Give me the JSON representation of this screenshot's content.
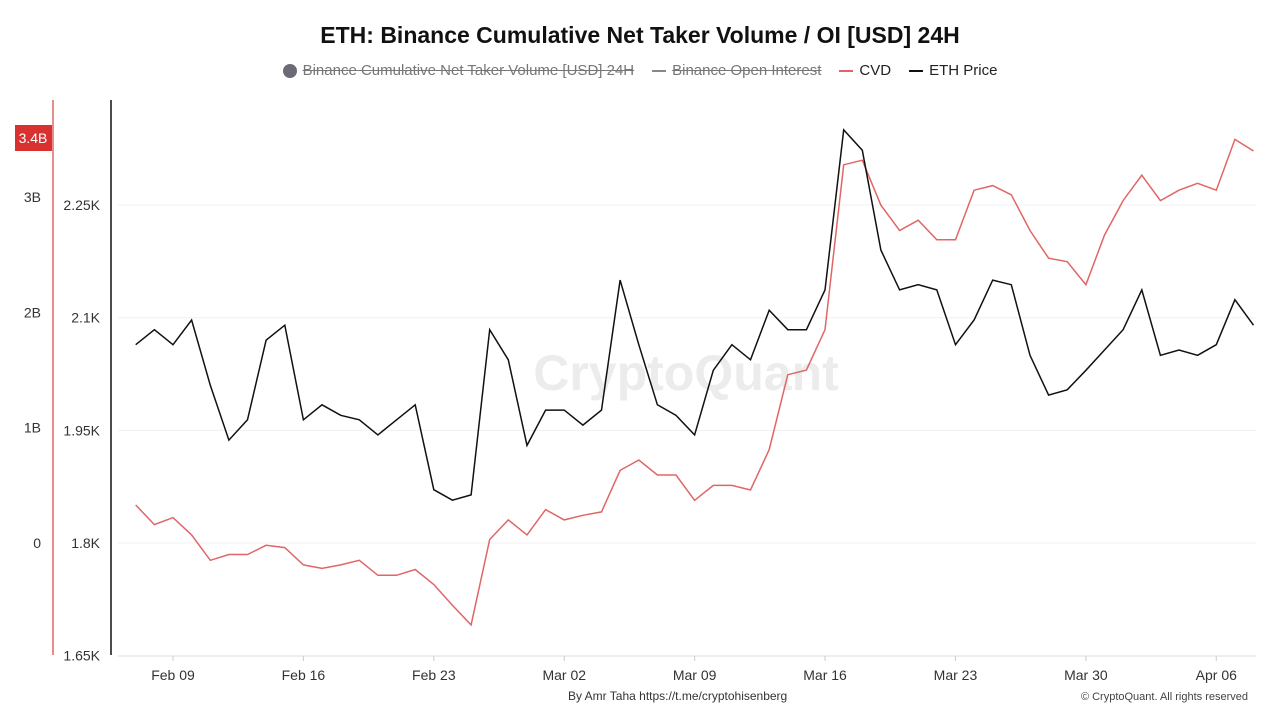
{
  "chart_data": {
    "type": "line",
    "title": "ETH: Binance Cumulative Net Taker Volume / OI [USD] 24H",
    "legend": [
      {
        "name": "Binance Cumulative Net Taker Volume [USD] 24H",
        "color": "#6b6b78",
        "hidden": true
      },
      {
        "name": "Binance Open Interest",
        "color": "#888888",
        "hidden": true
      },
      {
        "name": "CVD",
        "color": "#e06666",
        "hidden": false
      },
      {
        "name": "ETH Price",
        "color": "#111111",
        "hidden": false
      }
    ],
    "legend_position": "top",
    "x": [
      "2025-02-07",
      "2025-02-08",
      "2025-02-09",
      "2025-02-10",
      "2025-02-11",
      "2025-02-12",
      "2025-02-13",
      "2025-02-14",
      "2025-02-15",
      "2025-02-16",
      "2025-02-17",
      "2025-02-18",
      "2025-02-19",
      "2025-02-20",
      "2025-02-21",
      "2025-02-22",
      "2025-02-23",
      "2025-02-24",
      "2025-02-25",
      "2025-02-26",
      "2025-02-27",
      "2025-02-28",
      "2025-03-01",
      "2025-03-02",
      "2025-03-03",
      "2025-03-04",
      "2025-03-05",
      "2025-03-06",
      "2025-03-07",
      "2025-03-08",
      "2025-03-09",
      "2025-03-10",
      "2025-03-11",
      "2025-03-12",
      "2025-03-13",
      "2025-03-14",
      "2025-03-15",
      "2025-03-16",
      "2025-03-17",
      "2025-03-18",
      "2025-03-19",
      "2025-03-20",
      "2025-03-21",
      "2025-03-22",
      "2025-03-23",
      "2025-03-24",
      "2025-03-25",
      "2025-03-26",
      "2025-03-27",
      "2025-03-28",
      "2025-03-29",
      "2025-03-30",
      "2025-03-31",
      "2025-04-01",
      "2025-04-02",
      "2025-04-03",
      "2025-04-04",
      "2025-04-05",
      "2025-04-06",
      "2025-04-07",
      "2025-04-08"
    ],
    "series": [
      {
        "name": "CVD",
        "axis": "left",
        "unit": "USD billions",
        "color": "#e06666",
        "values": [
          0.33,
          0.16,
          0.22,
          0.07,
          -0.15,
          -0.1,
          -0.1,
          -0.02,
          -0.04,
          -0.19,
          -0.22,
          -0.19,
          -0.15,
          -0.28,
          -0.28,
          -0.23,
          -0.36,
          -0.54,
          -0.71,
          0.03,
          0.2,
          0.07,
          0.29,
          0.2,
          0.24,
          0.27,
          0.63,
          0.72,
          0.59,
          0.59,
          0.37,
          0.5,
          0.5,
          0.46,
          0.81,
          1.46,
          1.5,
          1.85,
          3.28,
          3.32,
          2.93,
          2.71,
          2.8,
          2.63,
          2.63,
          3.06,
          3.1,
          3.02,
          2.71,
          2.47,
          2.44,
          2.24,
          2.67,
          2.97,
          3.19,
          2.97,
          3.06,
          3.12,
          3.06,
          3.5,
          3.4
        ]
      },
      {
        "name": "ETH Price",
        "axis": "right",
        "unit": "USD",
        "color": "#111111",
        "values": [
          2064,
          2084,
          2064,
          2097,
          2010,
          1937,
          1964,
          2070,
          2090,
          1964,
          1984,
          1970,
          1964,
          1944,
          1964,
          1984,
          1871,
          1857,
          1864,
          2084,
          2044,
          1930,
          1977,
          1977,
          1957,
          1977,
          2150,
          2064,
          1984,
          1970,
          1944,
          2030,
          2064,
          2044,
          2110,
          2084,
          2084,
          2137,
          2350,
          2323,
          2190,
          2137,
          2144,
          2137,
          2064,
          2097,
          2150,
          2144,
          2050,
          1997,
          2004,
          2030,
          2057,
          2084,
          2137,
          2050,
          2057,
          2050,
          2064,
          2124,
          2090
        ]
      }
    ],
    "left_axis": {
      "ticks": [
        "0",
        "1B",
        "2B",
        "3B"
      ],
      "ylim_billions": [
        -0.98,
        3.82
      ],
      "current_value_label": "3.4B"
    },
    "price_axis": {
      "ticks": [
        "1.65K",
        "1.8K",
        "1.95K",
        "2.1K",
        "2.25K"
      ],
      "ylim": [
        1650,
        2390
      ]
    },
    "x_ticks": [
      "Feb 09",
      "Feb 16",
      "Feb 23",
      "Mar 02",
      "Mar 09",
      "Mar 16",
      "Mar 23",
      "Mar 30",
      "Apr 06"
    ],
    "grid": true
  },
  "watermark": "CryptoQuant",
  "footer": {
    "credit": "By Amr Taha",
    "link": "https://t.me/cryptohisenberg",
    "copyright": "© CryptoQuant. All rights reserved"
  }
}
